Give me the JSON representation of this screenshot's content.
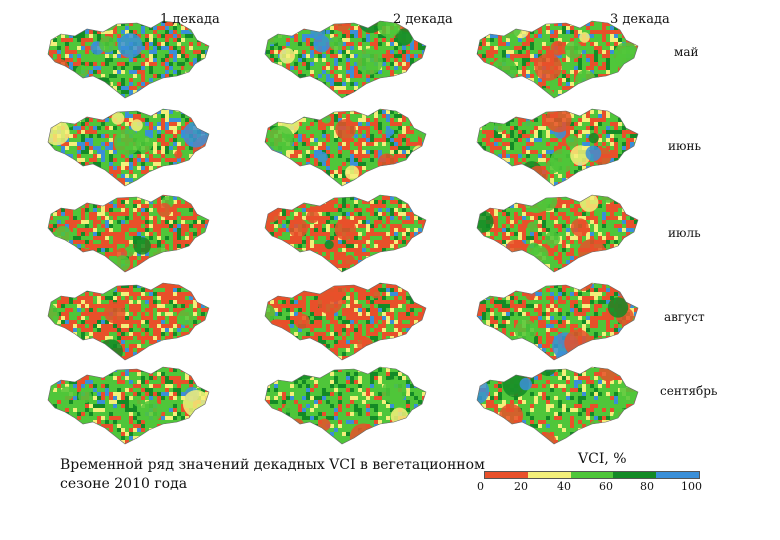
{
  "columns": [
    "1 декада",
    "2 декада",
    "3 декада"
  ],
  "rows": [
    "май",
    "июнь",
    "июль",
    "август",
    "сентябрь"
  ],
  "caption_line1": "Временной ряд значений декадных VCI в вегетационном",
  "caption_line2": "сезоне 2010 года",
  "legend": {
    "title": "VCI, %",
    "ticks": [
      "0",
      "20",
      "40",
      "60",
      "80",
      "100"
    ],
    "colors": [
      "#e8502a",
      "#f3ef7a",
      "#4fc63a",
      "#138a26",
      "#3a8fd8"
    ]
  },
  "maps": [
    [
      [
        0.2,
        0.1,
        0.4,
        0.15,
        0.15
      ],
      [
        0.25,
        0.1,
        0.4,
        0.12,
        0.13
      ],
      [
        0.3,
        0.12,
        0.42,
        0.1,
        0.06
      ]
    ],
    [
      [
        0.25,
        0.1,
        0.4,
        0.1,
        0.15
      ],
      [
        0.3,
        0.1,
        0.38,
        0.12,
        0.1
      ],
      [
        0.28,
        0.1,
        0.42,
        0.12,
        0.08
      ]
    ],
    [
      [
        0.45,
        0.08,
        0.32,
        0.1,
        0.05
      ],
      [
        0.5,
        0.08,
        0.3,
        0.08,
        0.04
      ],
      [
        0.4,
        0.1,
        0.38,
        0.08,
        0.04
      ]
    ],
    [
      [
        0.5,
        0.08,
        0.28,
        0.08,
        0.06
      ],
      [
        0.55,
        0.06,
        0.25,
        0.1,
        0.04
      ],
      [
        0.35,
        0.1,
        0.35,
        0.15,
        0.05
      ]
    ],
    [
      [
        0.2,
        0.12,
        0.5,
        0.12,
        0.06
      ],
      [
        0.1,
        0.1,
        0.6,
        0.15,
        0.05
      ],
      [
        0.2,
        0.12,
        0.52,
        0.12,
        0.04
      ]
    ]
  ]
}
